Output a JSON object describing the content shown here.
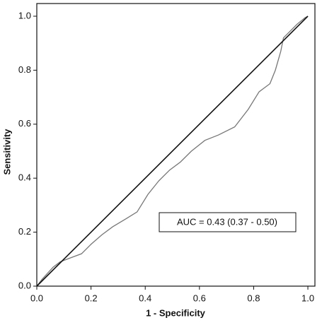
{
  "chart_data": {
    "type": "line",
    "x_label": "1 - Specificity",
    "y_label": "Sensitivity",
    "annotation": "AUC = 0.43 (0.37 - 0.50)",
    "xlim": [
      0,
      1.026
    ],
    "ylim": [
      0,
      1.047
    ],
    "xticks": [
      {
        "value": 0,
        "label": "0.0"
      },
      0.2,
      0.4,
      0.6,
      0.8,
      {
        "value": 1,
        "label": "1.0"
      }
    ],
    "yticks": [
      {
        "value": 0,
        "label": "0.0"
      },
      0.2,
      0.4,
      0.6,
      0.8,
      {
        "value": 1,
        "label": "1.0"
      }
    ],
    "series": [
      {
        "color": "#777777",
        "x": [
          0,
          0.02,
          0.06,
          0.086,
          0.125,
          0.165,
          0.2,
          0.24,
          0.28,
          0.33,
          0.37,
          0.41,
          0.45,
          0.49,
          0.53,
          0.57,
          0.62,
          0.67,
          0.73,
          0.78,
          0.82,
          0.86,
          0.88,
          0.9,
          0.91,
          0.96,
          0.99,
          1
        ],
        "values": [
          0,
          0.026,
          0.07,
          0.09,
          0.105,
          0.12,
          0.155,
          0.19,
          0.22,
          0.25,
          0.275,
          0.34,
          0.39,
          0.43,
          0.46,
          0.5,
          0.54,
          0.56,
          0.59,
          0.655,
          0.72,
          0.75,
          0.8,
          0.87,
          0.92,
          0.97,
          0.995,
          1
        ]
      },
      {
        "color": "#111111",
        "x": [
          0,
          1
        ],
        "values": [
          0,
          1
        ]
      }
    ]
  }
}
